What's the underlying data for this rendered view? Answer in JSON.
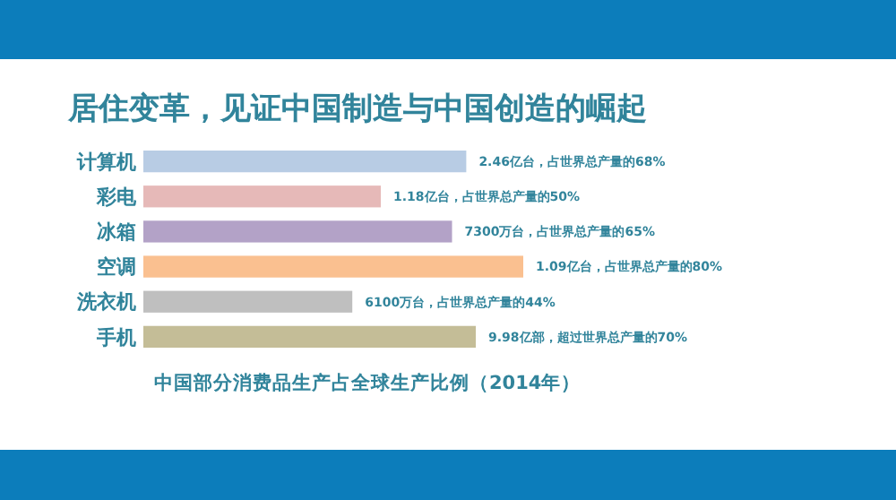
{
  "chart_data": {
    "type": "bar",
    "orientation": "horizontal",
    "title": "居住变革，见证中国制造与中国创造的崛起",
    "subtitle": "中国部分消费品生产占全球生产比例（2014年）",
    "categories": [
      "计算机",
      "彩电",
      "冰箱",
      "空调",
      "洗衣机",
      "手机"
    ],
    "values": [
      68,
      50,
      65,
      80,
      44,
      70
    ],
    "colors": [
      "#b8cce4",
      "#e6b9b8",
      "#b3a2c7",
      "#fac090",
      "#bfbfbf",
      "#c4bd97"
    ],
    "value_labels": [
      "2.46亿台，占世界总产量的68%",
      "1.18亿台，占世界总产量的50%",
      "7300万台，占世界总产量的65%",
      "1.09亿台，占世界总产量的80%",
      "6100万台，占世界总产量的44%",
      "9.98亿部，超过世界总产量的70%"
    ]
  }
}
